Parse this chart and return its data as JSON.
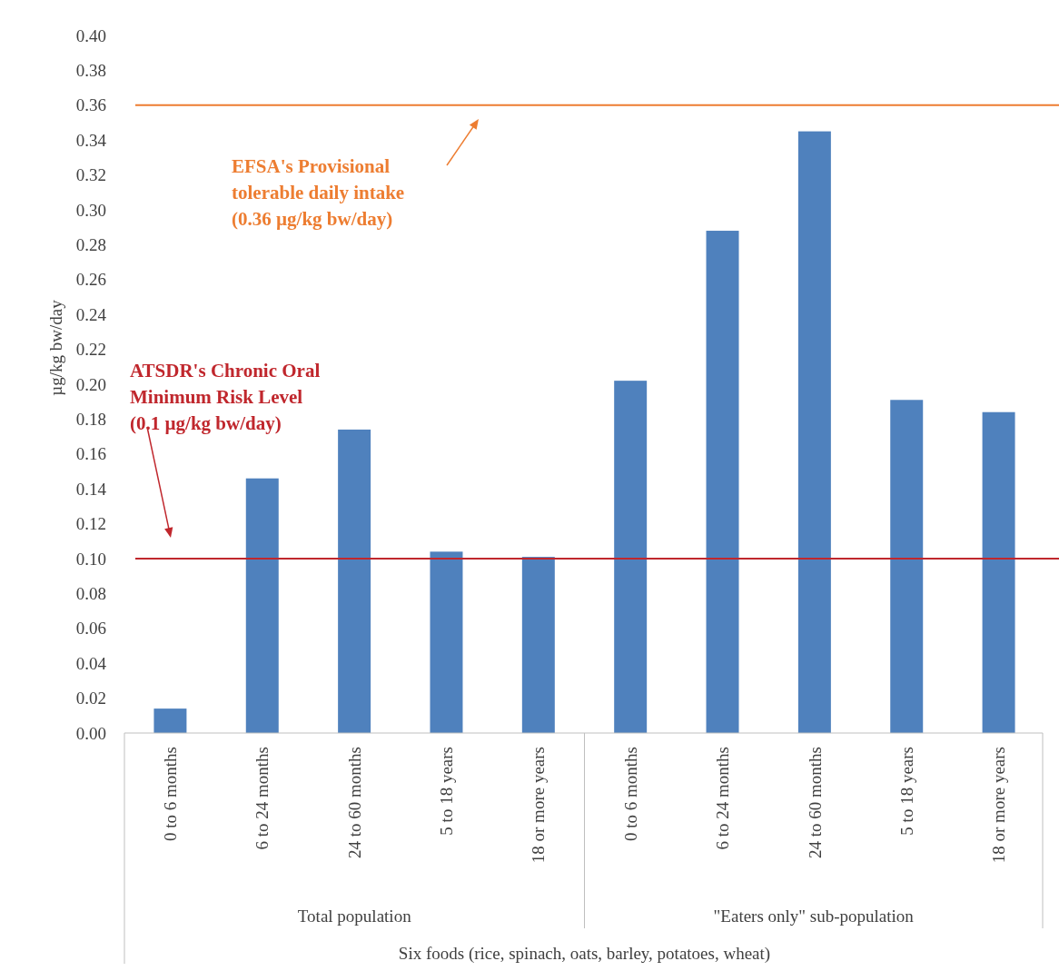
{
  "chart_data": {
    "type": "bar",
    "xlabel": "Six foods (rice, spinach, oats, barley, potatoes, wheat)",
    "ylabel": "µg/kg bw/day",
    "categories": [
      "0 to 6 months",
      "6 to 24 months",
      "24 to 60 months",
      "5 to 18 years",
      "18 or more years",
      "0 to 6 months",
      "6 to 24 months",
      "24 to 60 months",
      "5 to 18 years",
      "18 or more years"
    ],
    "values": [
      0.014,
      0.146,
      0.174,
      0.104,
      0.101,
      0.202,
      0.288,
      0.345,
      0.191,
      0.184
    ],
    "color": "#4f81bd",
    "ylim": [
      0,
      0.4
    ],
    "yticks": [
      {
        "value": 0,
        "label": "0.00"
      },
      0.02,
      0.04,
      0.06,
      0.08,
      {
        "value": 0.1,
        "label": "0.10"
      },
      0.12,
      0.14,
      0.16,
      0.18,
      {
        "value": 0.2,
        "label": "0.20"
      },
      0.22,
      0.24,
      0.26,
      0.28,
      {
        "value": 0.3,
        "label": "0.30"
      },
      0.32,
      0.34,
      0.36,
      0.38,
      {
        "value": 0.4,
        "label": "0.40"
      }
    ],
    "ref_lines": [
      {
        "axis": "y",
        "value": 0.36,
        "label": "EFSA's Provisional\ntolerable daily intake\n(0.36 µg/kg bw/day)",
        "color": "#ed7d31"
      },
      {
        "axis": "y",
        "value": 0.1,
        "label": "ATSDR's Chronic Oral\nMinimum Risk Level\n(0.1 µg/kg bw/day)",
        "color": "#c0272d"
      }
    ],
    "annotations": [
      "Total population",
      "\"Eaters only\" sub-population"
    ],
    "grid": false
  }
}
